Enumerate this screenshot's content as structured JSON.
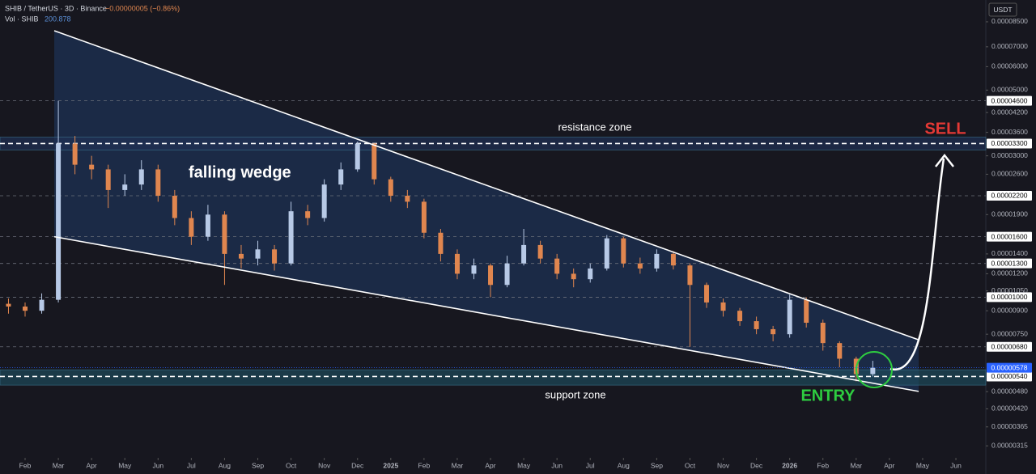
{
  "chart_data": {
    "type": "candlestick",
    "title": "SHIB / TetherUS · 3D · Binance",
    "change": "−0.00000005 (−0.86%)",
    "volume_label": "Vol · SHIB",
    "volume_value": "200.878",
    "currency": "USDT",
    "log_scale": true,
    "grid": false,
    "up_color": "#b7c9e6",
    "down_color": "#e0864f",
    "x": [
      -0.5,
      0,
      0.5,
      1,
      1.5,
      2,
      2.5,
      3,
      3.5,
      4,
      4.5,
      5,
      5.5,
      6,
      6.5,
      7,
      7.5,
      8,
      8.5,
      9,
      9.5,
      10,
      10.5,
      11,
      11.5,
      12,
      12.5,
      13,
      13.5,
      14,
      14.5,
      15,
      15.5,
      16,
      16.5,
      17,
      17.5,
      18,
      18.5,
      19,
      19.5,
      20,
      20.5,
      21,
      21.5,
      22,
      22.5,
      23,
      23.5,
      24,
      24.5,
      25,
      25.5
    ],
    "open": [
      9.5e-06,
      9.3e-06,
      9e-06,
      9.8e-06,
      3.3e-05,
      2.8e-05,
      2.7e-05,
      2.3e-05,
      2.4e-05,
      2.7e-05,
      2.2e-05,
      1.85e-05,
      1.6e-05,
      1.9e-05,
      1.4e-05,
      1.35e-05,
      1.45e-05,
      1.3e-05,
      1.95e-05,
      1.85e-05,
      2.4e-05,
      2.7e-05,
      3.3e-05,
      2.5e-05,
      2.2e-05,
      2.1e-05,
      1.65e-05,
      1.4e-05,
      1.2e-05,
      1.28e-05,
      1.1e-05,
      1.3e-05,
      1.5e-05,
      1.35e-05,
      1.2e-05,
      1.15e-05,
      1.25e-05,
      1.58e-05,
      1.3e-05,
      1.25e-05,
      1.4e-05,
      1.28e-05,
      1.1e-05,
      9.6e-06,
      9e-06,
      8.3e-06,
      7.8e-06,
      7.5e-06,
      9.8e-06,
      8.2e-06,
      7e-06,
      6.2e-06,
      5.5e-06
    ],
    "high": [
      9.9e-06,
      9.6e-06,
      1.03e-05,
      4.6e-05,
      3.5e-05,
      3e-05,
      2.8e-05,
      2.6e-05,
      2.9e-05,
      2.8e-05,
      2.3e-05,
      1.95e-05,
      2.05e-05,
      1.95e-05,
      1.5e-05,
      1.55e-05,
      1.5e-05,
      2.1e-05,
      2.05e-05,
      2.5e-05,
      2.85e-05,
      3.35e-05,
      3.3e-05,
      2.55e-05,
      2.3e-05,
      2.15e-05,
      1.7e-05,
      1.45e-05,
      1.35e-05,
      1.3e-05,
      1.38e-05,
      1.7e-05,
      1.55e-05,
      1.4e-05,
      1.25e-05,
      1.3e-05,
      1.62e-05,
      1.6e-05,
      1.36e-05,
      1.45e-05,
      1.43e-05,
      1.3e-05,
      1.12e-05,
      9.9e-06,
      9.2e-06,
      8.6e-06,
      8e-06,
      1.02e-05,
      1e-05,
      8.4e-06,
      7.1e-06,
      6.3e-06,
      6.1e-06
    ],
    "low": [
      8.8e-06,
      8.6e-06,
      8.8e-06,
      9.6e-06,
      2.6e-05,
      2.5e-05,
      2e-05,
      2.2e-05,
      2.3e-05,
      2.1e-05,
      1.75e-05,
      1.5e-05,
      1.55e-05,
      1.1e-05,
      1.25e-05,
      1.28e-05,
      1.23e-05,
      1.28e-05,
      1.75e-05,
      1.8e-05,
      2.3e-05,
      2.65e-05,
      2.4e-05,
      2.1e-05,
      2e-05,
      1.58e-05,
      1.32e-05,
      1.15e-05,
      1.15e-05,
      1e-05,
      1.08e-05,
      1.28e-05,
      1.3e-05,
      1.15e-05,
      1.08e-05,
      1.12e-05,
      1.23e-05,
      1.26e-05,
      1.2e-05,
      1.22e-05,
      1.24e-05,
      6.8e-06,
      9.2e-06,
      8.6e-06,
      8e-06,
      7.5e-06,
      7.1e-06,
      7.3e-06,
      7.9e-06,
      6.6e-06,
      5.8e-06,
      5.2e-06,
      5.4e-06
    ],
    "close": [
      9.3e-06,
      9e-06,
      9.8e-06,
      3.3e-05,
      2.8e-05,
      2.7e-05,
      2.3e-05,
      2.4e-05,
      2.7e-05,
      2.2e-05,
      1.85e-05,
      1.6e-05,
      1.9e-05,
      1.4e-05,
      1.35e-05,
      1.45e-05,
      1.3e-05,
      1.95e-05,
      1.85e-05,
      2.4e-05,
      2.7e-05,
      3.3e-05,
      2.5e-05,
      2.2e-05,
      2.1e-05,
      1.65e-05,
      1.4e-05,
      1.2e-05,
      1.28e-05,
      1.1e-05,
      1.3e-05,
      1.5e-05,
      1.35e-05,
      1.2e-05,
      1.15e-05,
      1.25e-05,
      1.58e-05,
      1.3e-05,
      1.25e-05,
      1.4e-05,
      1.28e-05,
      1.1e-05,
      9.6e-06,
      9e-06,
      8.3e-06,
      7.8e-06,
      7.5e-06,
      9.8e-06,
      8.2e-06,
      7e-06,
      6.2e-06,
      5.5e-06,
      5.78e-06
    ],
    "xlim": [
      -0.755,
      28.9
    ],
    "xticks": [
      {
        "value": 0,
        "label": "Feb"
      },
      {
        "value": 1,
        "label": "Mar"
      },
      {
        "value": 2,
        "label": "Apr"
      },
      {
        "value": 3,
        "label": "May"
      },
      {
        "value": 4,
        "label": "Jun"
      },
      {
        "value": 5,
        "label": "Jul"
      },
      {
        "value": 6,
        "label": "Aug"
      },
      {
        "value": 7,
        "label": "Sep"
      },
      {
        "value": 8,
        "label": "Oct"
      },
      {
        "value": 9,
        "label": "Nov"
      },
      {
        "value": 10,
        "label": "Dec"
      },
      {
        "value": 11,
        "label": "2025"
      },
      {
        "value": 12,
        "label": "Feb"
      },
      {
        "value": 13,
        "label": "Mar"
      },
      {
        "value": 14,
        "label": "Apr"
      },
      {
        "value": 15,
        "label": "May"
      },
      {
        "value": 16,
        "label": "Jun"
      },
      {
        "value": 17,
        "label": "Jul"
      },
      {
        "value": 18,
        "label": "Aug"
      },
      {
        "value": 19,
        "label": "Sep"
      },
      {
        "value": 20,
        "label": "Oct"
      },
      {
        "value": 21,
        "label": "Nov"
      },
      {
        "value": 22,
        "label": "Dec"
      },
      {
        "value": 23,
        "label": "2026"
      },
      {
        "value": 24,
        "label": "Feb"
      },
      {
        "value": 25,
        "label": "Mar"
      },
      {
        "value": 26,
        "label": "Apr"
      },
      {
        "value": 27,
        "label": "May"
      },
      {
        "value": 28,
        "label": "Jun"
      }
    ],
    "ylim": [
      2.87e-06,
      0.0001007
    ],
    "yticks": [
      {
        "value": 8.5e-05,
        "label": "0.00008500"
      },
      {
        "value": 7e-05,
        "label": "0.00007000"
      },
      {
        "value": 6e-05,
        "label": "0.00006000"
      },
      {
        "value": 5e-05,
        "label": "0.00005000"
      },
      {
        "value": 4.2e-05,
        "label": "0.00004200"
      },
      {
        "value": 3.6e-05,
        "label": "0.00003600"
      },
      {
        "value": 3e-05,
        "label": "0.00003000"
      },
      {
        "value": 2.6e-05,
        "label": "0.00002600"
      },
      {
        "value": 1.9e-05,
        "label": "0.00001900"
      },
      {
        "value": 1.4e-05,
        "label": "0.00001400"
      },
      {
        "value": 1.2e-05,
        "label": "0.00001200"
      },
      {
        "value": 1.05e-05,
        "label": "0.00001050"
      },
      {
        "value": 9e-06,
        "label": "0.00000900"
      },
      {
        "value": 7.5e-06,
        "label": "0.00000750"
      },
      {
        "value": 4.8e-06,
        "label": "0.00000480"
      },
      {
        "value": 4.2e-06,
        "label": "0.00000420"
      },
      {
        "value": 3.65e-06,
        "label": "0.00000365"
      },
      {
        "value": 3.15e-06,
        "label": "0.00000315"
      }
    ],
    "price_levels": [
      {
        "value": 4.6e-05,
        "label": "0.00004600"
      },
      {
        "value": 3.3e-05,
        "label": "0.00003300"
      },
      {
        "value": 2.2e-05,
        "label": "0.00002200"
      },
      {
        "value": 1.6e-05,
        "label": "0.00001600"
      },
      {
        "value": 1.3e-05,
        "label": "0.00001300"
      },
      {
        "value": 1e-05,
        "label": "0.00001000"
      },
      {
        "value": 6.8e-06,
        "label": "0.00000680"
      },
      {
        "value": 5.4e-06,
        "label": "0.00000540"
      }
    ],
    "last_price": {
      "value": 5.78e-06,
      "label": "0.00000578"
    },
    "resistance_zone": [
      3.14e-05,
      3.47e-05
    ],
    "support_zone": [
      5.05e-06,
      5.69e-06
    ],
    "wedge_x": [
      0.877,
      26.88
    ],
    "wedge_upper": [
      7.93e-05,
      7.18e-06
    ],
    "wedge_lower": [
      1.6e-05,
      4.81e-06
    ],
    "annotations": {
      "pattern": "falling wedge",
      "resistance": "resistance zone",
      "support": "support zone",
      "sell": "SELL",
      "entry": "ENTRY"
    }
  }
}
